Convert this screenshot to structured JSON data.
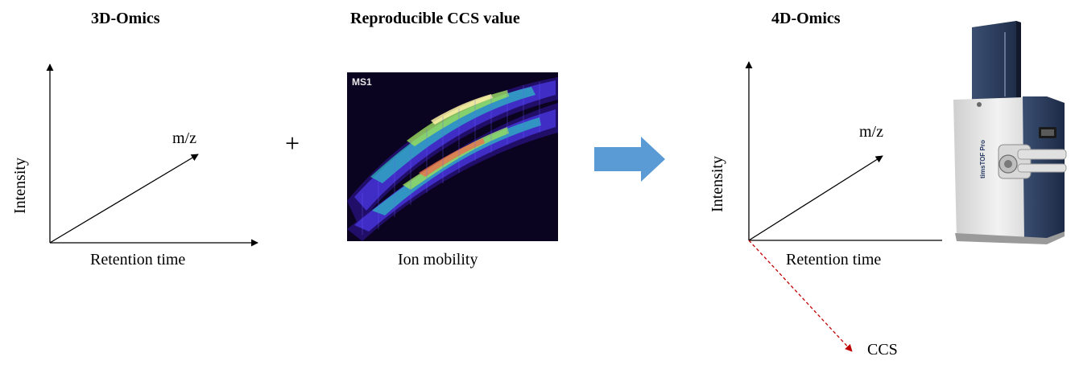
{
  "panels": {
    "left": {
      "title": "3D-Omics",
      "y_axis_label": "Intensity",
      "x_axis_label": "Retention time",
      "z_axis_label": "m/z"
    },
    "middle": {
      "title": "Reproducible CCS value",
      "image_tag": "MS1",
      "caption": "Ion mobility",
      "plus_symbol": "+"
    },
    "right": {
      "title": "4D-Omics",
      "y_axis_label": "Intensity",
      "x_axis_label": "Retention time",
      "z_axis_label": "m/z",
      "w_axis_label": "CCS"
    }
  },
  "instrument": {
    "brand_text": "timsTOF Pro"
  },
  "colors": {
    "arrow_fill": "#5b9bd5",
    "ccs_axis": "#c00000",
    "heatmap_bg": "#0b0420",
    "axis": "#000000"
  }
}
